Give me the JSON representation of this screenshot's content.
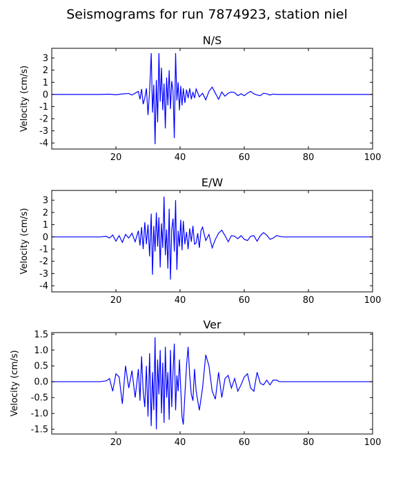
{
  "figure": {
    "title": "Seismograms for run 7874923, station niel",
    "line_color": "#0000ff"
  },
  "chart_data": [
    {
      "type": "line",
      "title": "N/S",
      "xlabel": "",
      "ylabel": "Velocity (cm/s)",
      "xlim": [
        0,
        100
      ],
      "ylim": [
        -4.5,
        3.8
      ],
      "xticks": [
        20,
        40,
        60,
        80,
        100
      ],
      "yticks": [
        -4,
        -3,
        -2,
        -1,
        0,
        1,
        2,
        3
      ],
      "grid": false,
      "waveform": [
        [
          0,
          0
        ],
        [
          15,
          0
        ],
        [
          18,
          0.02
        ],
        [
          20,
          -0.03
        ],
        [
          22,
          0.04
        ],
        [
          24,
          0.08
        ],
        [
          25,
          -0.05
        ],
        [
          26,
          0.1
        ],
        [
          27,
          0.25
        ],
        [
          27.5,
          -0.4
        ],
        [
          28,
          0.45
        ],
        [
          28.5,
          -0.8
        ],
        [
          29,
          -0.3
        ],
        [
          29.5,
          0.5
        ],
        [
          30,
          -1.7
        ],
        [
          30.5,
          0.3
        ],
        [
          31,
          3.4
        ],
        [
          31.4,
          -1.5
        ],
        [
          31.8,
          0.8
        ],
        [
          32.2,
          -4.1
        ],
        [
          32.6,
          1.2
        ],
        [
          33,
          -2.3
        ],
        [
          33.4,
          3.4
        ],
        [
          33.8,
          -0.6
        ],
        [
          34.2,
          2.2
        ],
        [
          34.6,
          -1.3
        ],
        [
          35,
          0.9
        ],
        [
          35.4,
          -2.8
        ],
        [
          35.8,
          1.4
        ],
        [
          36.2,
          -0.9
        ],
        [
          36.6,
          2.0
        ],
        [
          37,
          -1.2
        ],
        [
          37.4,
          1.1
        ],
        [
          37.8,
          0.3
        ],
        [
          38.2,
          -3.6
        ],
        [
          38.6,
          3.4
        ],
        [
          39,
          -0.5
        ],
        [
          39.4,
          1.0
        ],
        [
          39.8,
          -1.3
        ],
        [
          40.2,
          0.7
        ],
        [
          40.6,
          -0.9
        ],
        [
          41,
          0.5
        ],
        [
          41.5,
          -0.7
        ],
        [
          42,
          0.4
        ],
        [
          42.5,
          -0.3
        ],
        [
          43,
          0.5
        ],
        [
          43.5,
          -0.4
        ],
        [
          44,
          0.2
        ],
        [
          44.5,
          -0.3
        ],
        [
          45,
          0.45
        ],
        [
          46,
          -0.2
        ],
        [
          47,
          0.1
        ],
        [
          48,
          -0.45
        ],
        [
          49,
          0.25
        ],
        [
          50,
          0.6
        ],
        [
          51,
          0.1
        ],
        [
          52,
          -0.4
        ],
        [
          53,
          0.2
        ],
        [
          54,
          -0.15
        ],
        [
          55,
          0.1
        ],
        [
          56,
          0.2
        ],
        [
          57,
          0.15
        ],
        [
          58,
          -0.1
        ],
        [
          59,
          0.05
        ],
        [
          60,
          -0.1
        ],
        [
          61,
          0.1
        ],
        [
          62,
          0.25
        ],
        [
          63,
          0.05
        ],
        [
          64,
          -0.05
        ],
        [
          65,
          -0.1
        ],
        [
          66,
          0.1
        ],
        [
          67,
          0.05
        ],
        [
          68,
          -0.05
        ],
        [
          69,
          0.03
        ],
        [
          70,
          0
        ],
        [
          72,
          0
        ],
        [
          100,
          0
        ]
      ]
    },
    {
      "type": "line",
      "title": "E/W",
      "xlabel": "",
      "ylabel": "Velocity (cm/s)",
      "xlim": [
        0,
        100
      ],
      "ylim": [
        -4.5,
        3.8
      ],
      "xticks": [
        20,
        40,
        60,
        80,
        100
      ],
      "yticks": [
        -4,
        -3,
        -2,
        -1,
        0,
        1,
        2,
        3
      ],
      "grid": false,
      "waveform": [
        [
          0,
          0
        ],
        [
          15,
          0
        ],
        [
          17,
          0.05
        ],
        [
          18,
          -0.1
        ],
        [
          19,
          0.15
        ],
        [
          20,
          -0.35
        ],
        [
          21,
          0.1
        ],
        [
          22,
          -0.45
        ],
        [
          23,
          0.2
        ],
        [
          24,
          -0.1
        ],
        [
          25,
          0.3
        ],
        [
          26,
          -0.4
        ],
        [
          27,
          0.5
        ],
        [
          27.5,
          -0.7
        ],
        [
          28,
          0.8
        ],
        [
          28.5,
          -1.0
        ],
        [
          29,
          1.2
        ],
        [
          29.5,
          -0.6
        ],
        [
          30,
          1.0
        ],
        [
          30.5,
          -1.6
        ],
        [
          31,
          1.9
        ],
        [
          31.4,
          -3.1
        ],
        [
          31.8,
          0.9
        ],
        [
          32.2,
          -1.2
        ],
        [
          32.6,
          2.0
        ],
        [
          33,
          -0.8
        ],
        [
          33.4,
          1.6
        ],
        [
          33.8,
          -2.5
        ],
        [
          34.2,
          1.1
        ],
        [
          34.6,
          -0.9
        ],
        [
          35,
          3.3
        ],
        [
          35.4,
          -1.5
        ],
        [
          35.8,
          0.6
        ],
        [
          36.2,
          -2.6
        ],
        [
          36.6,
          2.3
        ],
        [
          37,
          -3.5
        ],
        [
          37.4,
          0.6
        ],
        [
          37.8,
          1.5
        ],
        [
          38.2,
          -1.2
        ],
        [
          38.6,
          3.0
        ],
        [
          39,
          -2.7
        ],
        [
          39.4,
          0.5
        ],
        [
          39.8,
          -0.8
        ],
        [
          40.2,
          1.4
        ],
        [
          40.6,
          -1.1
        ],
        [
          41,
          1.3
        ],
        [
          41.5,
          -0.6
        ],
        [
          42,
          0.4
        ],
        [
          42.5,
          -1.0
        ],
        [
          43,
          0.7
        ],
        [
          43.5,
          -0.4
        ],
        [
          44,
          0.9
        ],
        [
          44.5,
          -0.6
        ],
        [
          45,
          -0.5
        ],
        [
          45.5,
          0.3
        ],
        [
          46,
          -0.9
        ],
        [
          46.5,
          0.5
        ],
        [
          47,
          0.8
        ],
        [
          48,
          -0.3
        ],
        [
          49,
          0.2
        ],
        [
          50,
          -0.9
        ],
        [
          51,
          -0.2
        ],
        [
          52,
          0.3
        ],
        [
          53,
          0.55
        ],
        [
          54,
          0.1
        ],
        [
          55,
          -0.4
        ],
        [
          56,
          0.1
        ],
        [
          57,
          0.05
        ],
        [
          58,
          -0.15
        ],
        [
          59,
          0.1
        ],
        [
          60,
          -0.2
        ],
        [
          61,
          -0.3
        ],
        [
          62,
          0.05
        ],
        [
          63,
          0.1
        ],
        [
          64,
          -0.35
        ],
        [
          65,
          0.1
        ],
        [
          66,
          0.35
        ],
        [
          67,
          0.15
        ],
        [
          68,
          -0.2
        ],
        [
          69,
          -0.1
        ],
        [
          70,
          0.1
        ],
        [
          71,
          0.05
        ],
        [
          72,
          0
        ],
        [
          100,
          0
        ]
      ]
    },
    {
      "type": "line",
      "title": "Ver",
      "xlabel": "",
      "ylabel": "Velocity (cm/s)",
      "xlim": [
        0,
        100
      ],
      "ylim": [
        -1.65,
        1.55
      ],
      "xticks": [
        20,
        40,
        60,
        80,
        100
      ],
      "yticks": [
        -1.5,
        -1.0,
        -0.5,
        0.0,
        0.5,
        1.0,
        1.5
      ],
      "grid": false,
      "waveform": [
        [
          0,
          0
        ],
        [
          15,
          0
        ],
        [
          17,
          0.03
        ],
        [
          18,
          0.1
        ],
        [
          19,
          -0.3
        ],
        [
          20,
          0.25
        ],
        [
          21,
          0.15
        ],
        [
          22,
          -0.7
        ],
        [
          23,
          0.5
        ],
        [
          24,
          -0.2
        ],
        [
          25,
          0.35
        ],
        [
          26,
          -0.5
        ],
        [
          27,
          0.4
        ],
        [
          27.5,
          -0.6
        ],
        [
          28,
          0.8
        ],
        [
          28.5,
          -0.3
        ],
        [
          29,
          -0.8
        ],
        [
          29.5,
          0.5
        ],
        [
          30,
          -1.1
        ],
        [
          30.5,
          0.9
        ],
        [
          31,
          -1.4
        ],
        [
          31.4,
          0.3
        ],
        [
          31.8,
          -0.9
        ],
        [
          32.2,
          1.4
        ],
        [
          32.6,
          -1.5
        ],
        [
          33,
          0.7
        ],
        [
          33.4,
          -0.4
        ],
        [
          33.8,
          1.0
        ],
        [
          34.2,
          -1.0
        ],
        [
          34.6,
          0.6
        ],
        [
          35,
          -1.3
        ],
        [
          35.4,
          1.1
        ],
        [
          35.8,
          -0.5
        ],
        [
          36.2,
          0.3
        ],
        [
          36.6,
          -1.2
        ],
        [
          37,
          1.0
        ],
        [
          37.4,
          -0.8
        ],
        [
          37.8,
          0.3
        ],
        [
          38.2,
          1.2
        ],
        [
          38.6,
          -0.9
        ],
        [
          39,
          0.2
        ],
        [
          39.4,
          -0.3
        ],
        [
          39.8,
          0.7
        ],
        [
          40.2,
          -0.2
        ],
        [
          40.6,
          -1.1
        ],
        [
          41,
          -1.35
        ],
        [
          41.5,
          -0.4
        ],
        [
          42,
          0.5
        ],
        [
          42.5,
          1.1
        ],
        [
          43,
          0.2
        ],
        [
          43.5,
          -0.4
        ],
        [
          44,
          -0.6
        ],
        [
          44.5,
          0.4
        ],
        [
          45,
          -0.3
        ],
        [
          46,
          -0.9
        ],
        [
          47,
          -0.2
        ],
        [
          48,
          0.85
        ],
        [
          49,
          0.5
        ],
        [
          50,
          -0.3
        ],
        [
          51,
          -0.55
        ],
        [
          52,
          0.3
        ],
        [
          53,
          -0.5
        ],
        [
          54,
          0.1
        ],
        [
          55,
          0.2
        ],
        [
          56,
          -0.2
        ],
        [
          57,
          0.1
        ],
        [
          58,
          -0.3
        ],
        [
          59,
          -0.1
        ],
        [
          60,
          0.15
        ],
        [
          61,
          0.25
        ],
        [
          62,
          -0.2
        ],
        [
          63,
          -0.3
        ],
        [
          64,
          0.3
        ],
        [
          65,
          -0.05
        ],
        [
          66,
          -0.1
        ],
        [
          67,
          0.05
        ],
        [
          68,
          -0.1
        ],
        [
          69,
          0.05
        ],
        [
          70,
          0.05
        ],
        [
          71,
          0
        ],
        [
          72,
          0
        ],
        [
          100,
          0
        ]
      ]
    }
  ]
}
